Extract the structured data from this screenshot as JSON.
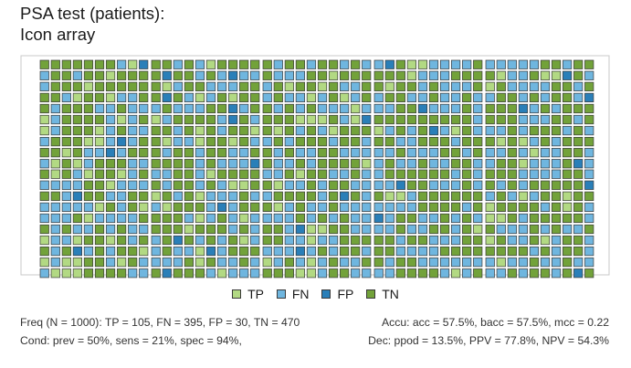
{
  "title": {
    "line1": "PSA test (patients):",
    "line2": "Icon array"
  },
  "chart_data": {
    "type": "icon-array",
    "total": 1000,
    "layout": {
      "blocks_rows": 2,
      "blocks_cols": 5,
      "block_rows": 10,
      "block_cols": 10
    },
    "categories": [
      {
        "key": "TP",
        "label": "TP",
        "count": 105,
        "color": "#b2d983"
      },
      {
        "key": "FN",
        "label": "FN",
        "count": 395,
        "color": "#6fb6df"
      },
      {
        "key": "FP",
        "label": "FP",
        "count": 30,
        "color": "#2a7fb8"
      },
      {
        "key": "TN",
        "label": "TN",
        "count": 470,
        "color": "#72a23a"
      }
    ]
  },
  "legend": {
    "items": [
      {
        "label": "TP",
        "color": "#b2d983"
      },
      {
        "label": "FN",
        "color": "#6fb6df"
      },
      {
        "label": "FP",
        "color": "#2a7fb8"
      },
      {
        "label": "TN",
        "color": "#72a23a"
      }
    ]
  },
  "stats": {
    "freq": "Freq (N = 1000):  TP = 105, FN = 395, FP = 30, TN = 470",
    "accu": "Accu:  acc = 57.5%, bacc = 57.5%, mcc = 0.22",
    "cond": "Cond:  prev = 50%, sens = 21%, spec = 94%,",
    "dec": "Dec:  ppod = 13.5%, PPV = 77.8%, NPV = 54.3%"
  }
}
